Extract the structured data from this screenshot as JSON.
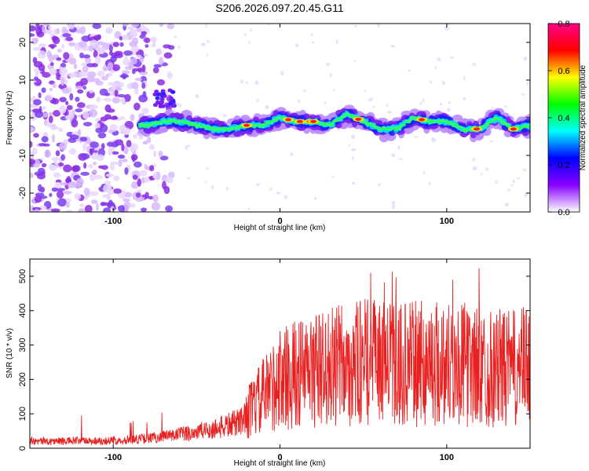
{
  "figure_title": "S206.2026.097.20.45.G11",
  "chart_data": [
    {
      "type": "heatmap",
      "title": "",
      "xlabel": "Height of straight line (km)",
      "ylabel": "Frequency (Hz)",
      "xlim": [
        -150,
        150
      ],
      "ylim": [
        -25,
        25
      ],
      "xticks": [
        -100,
        0,
        100
      ],
      "yticks": [
        -20,
        -10,
        0,
        10,
        20
      ],
      "grid": false,
      "ridge": {
        "description_points_x": [
          -80,
          -70,
          -60,
          -50,
          -40,
          -30,
          -20,
          -10,
          0,
          10,
          20,
          30,
          40,
          50,
          60,
          70,
          80,
          90,
          100,
          110,
          120,
          130,
          140,
          150
        ],
        "frequency_hz": [
          -2,
          -1,
          -1,
          -2,
          -3,
          -3,
          -2,
          -2,
          0,
          -1,
          -1,
          -2,
          1,
          -1,
          -3,
          -3,
          0,
          -1,
          -1,
          -3,
          -3,
          0,
          -3,
          -2
        ]
      },
      "noise_region_x": [
        -150,
        -75
      ],
      "colorbar": {
        "label": "Normalized spectral amplitude",
        "range": [
          0.0,
          0.8
        ],
        "ticks": [
          "0.0",
          "0.2",
          "0.4",
          "0.6",
          "0.8"
        ],
        "colors": [
          "#ffffff",
          "#8800ff",
          "#0000ff",
          "#00ffff",
          "#00ff00",
          "#ffff00",
          "#ff0000",
          "#ff0088"
        ]
      }
    },
    {
      "type": "line",
      "title": "",
      "xlabel": "Height of straight line (km)",
      "ylabel": "SNR (10 * v/v)",
      "xlim": [
        -150,
        150
      ],
      "ylim": [
        0,
        550
      ],
      "xticks": [
        -100,
        0,
        100
      ],
      "yticks": [
        0,
        100,
        200,
        300,
        400,
        500
      ],
      "grid": false,
      "series": [
        {
          "name": "SNR",
          "color": "#e82020",
          "trend_x": [
            -150,
            -100,
            -80,
            -60,
            -40,
            -25,
            -10,
            0,
            10,
            20,
            40,
            60,
            80,
            100,
            120,
            140,
            150
          ],
          "trend_y": [
            20,
            22,
            28,
            40,
            55,
            75,
            150,
            200,
            215,
            225,
            245,
            250,
            245,
            250,
            235,
            230,
            240
          ]
        }
      ]
    }
  ]
}
